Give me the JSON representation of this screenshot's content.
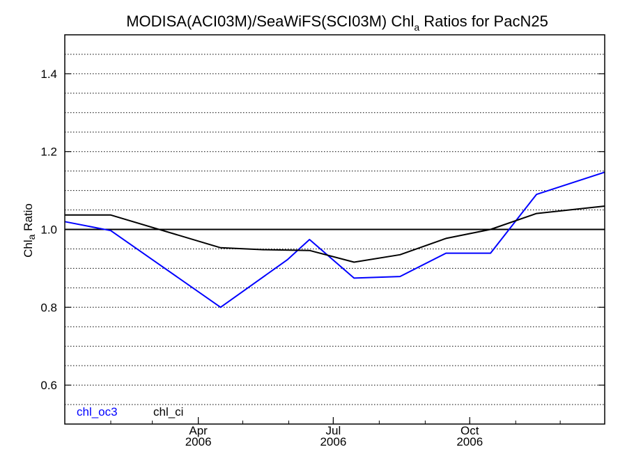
{
  "chart_data": {
    "type": "line",
    "title": {
      "prefix": "MODISA(ACI03M)/SeaWiFS(SCI03M)  Chl",
      "subscript": "a",
      "suffix": " Ratios for PacN25"
    },
    "ylabel": {
      "prefix": "Chl",
      "subscript": "a",
      "suffix": " Ratio"
    },
    "xlim": [
      "2006-01-01",
      "2006-12-31"
    ],
    "ylim": [
      0.5,
      1.5
    ],
    "yticks": [
      {
        "value": 0.6,
        "label": "0.6"
      },
      {
        "value": 0.8,
        "label": "0.8"
      },
      {
        "value": 1.0,
        "label": "1.0"
      },
      {
        "value": 1.2,
        "label": "1.2"
      },
      {
        "value": 1.4,
        "label": "1.4"
      }
    ],
    "xticks": [
      {
        "date": "2006-04-01",
        "label": "Apr",
        "year": "2006"
      },
      {
        "date": "2006-07-01",
        "label": "Jul",
        "year": "2006"
      },
      {
        "date": "2006-10-01",
        "label": "Oct",
        "year": "2006"
      }
    ],
    "reference_line": 1.0,
    "grid": "horizontal dotted",
    "legend_position": "bottom-left",
    "series": [
      {
        "name": "chl_oc3",
        "color": "#0000ff",
        "points": [
          {
            "x": "2006-01-01",
            "y": 1.02
          },
          {
            "x": "2006-02-01",
            "y": 0.997
          },
          {
            "x": "2006-04-16",
            "y": 0.8
          },
          {
            "x": "2006-05-31",
            "y": 0.922
          },
          {
            "x": "2006-06-15",
            "y": 0.974
          },
          {
            "x": "2006-07-15",
            "y": 0.875
          },
          {
            "x": "2006-08-15",
            "y": 0.879
          },
          {
            "x": "2006-09-15",
            "y": 0.939
          },
          {
            "x": "2006-10-15",
            "y": 0.939
          },
          {
            "x": "2006-11-15",
            "y": 1.09
          },
          {
            "x": "2006-12-31",
            "y": 1.147
          }
        ]
      },
      {
        "name": "chl_ci",
        "color": "#000000",
        "points": [
          {
            "x": "2006-01-01",
            "y": 1.037
          },
          {
            "x": "2006-02-01",
            "y": 1.037
          },
          {
            "x": "2006-04-16",
            "y": 0.953
          },
          {
            "x": "2006-05-15",
            "y": 0.948
          },
          {
            "x": "2006-06-15",
            "y": 0.946
          },
          {
            "x": "2006-07-15",
            "y": 0.916
          },
          {
            "x": "2006-08-15",
            "y": 0.935
          },
          {
            "x": "2006-09-15",
            "y": 0.977
          },
          {
            "x": "2006-10-15",
            "y": 1.0
          },
          {
            "x": "2006-11-15",
            "y": 1.041
          },
          {
            "x": "2006-12-31",
            "y": 1.06
          }
        ]
      }
    ]
  }
}
